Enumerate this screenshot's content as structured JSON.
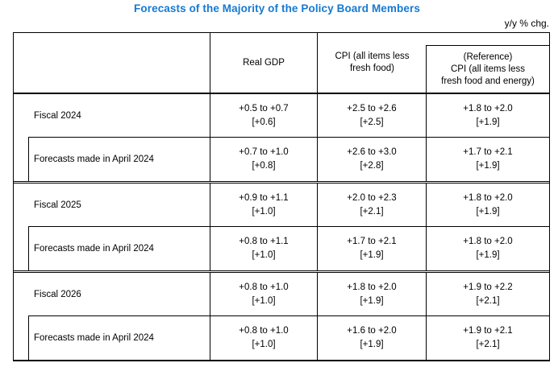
{
  "page": {
    "title": "Forecasts of the Majority of the Policy Board Members",
    "unit_note": "y/y % chg.",
    "title_color": "#1679d2",
    "border_color": "#000000"
  },
  "table": {
    "header": {
      "col_label": "",
      "col_real_gdp": "Real GDP",
      "col_cpi": "CPI (all items less\nfresh food)",
      "col_cpi_ref": "(Reference)\nCPI (all items less\nfresh food and energy)"
    },
    "groups": [
      {
        "fiscal": {
          "label": "Fiscal 2024",
          "cells": [
            {
              "range": "+0.5 to +0.7",
              "point": "[+0.6]"
            },
            {
              "range": "+2.5 to +2.6",
              "point": "[+2.5]"
            },
            {
              "range": "+1.8 to +2.0",
              "point": "[+1.9]"
            }
          ]
        },
        "april": {
          "label": "Forecasts made in April 2024",
          "cells": [
            {
              "range": "+0.7 to +1.0",
              "point": "[+0.8]"
            },
            {
              "range": "+2.6 to +3.0",
              "point": "[+2.8]"
            },
            {
              "range": "+1.7 to +2.1",
              "point": "[+1.9]"
            }
          ]
        }
      },
      {
        "fiscal": {
          "label": "Fiscal 2025",
          "cells": [
            {
              "range": "+0.9 to +1.1",
              "point": "[+1.0]"
            },
            {
              "range": "+2.0 to +2.3",
              "point": "[+2.1]"
            },
            {
              "range": "+1.8 to +2.0",
              "point": "[+1.9]"
            }
          ]
        },
        "april": {
          "label": "Forecasts made in April 2024",
          "cells": [
            {
              "range": "+0.8 to +1.1",
              "point": "[+1.0]"
            },
            {
              "range": "+1.7 to +2.1",
              "point": "[+1.9]"
            },
            {
              "range": "+1.8 to +2.0",
              "point": "[+1.9]"
            }
          ]
        }
      },
      {
        "fiscal": {
          "label": "Fiscal 2026",
          "cells": [
            {
              "range": "+0.8 to +1.0",
              "point": "[+1.0]"
            },
            {
              "range": "+1.8 to +2.0",
              "point": "[+1.9]"
            },
            {
              "range": "+1.9 to +2.2",
              "point": "[+2.1]"
            }
          ]
        },
        "april": {
          "label": "Forecasts made in April 2024",
          "cells": [
            {
              "range": "+0.8 to +1.0",
              "point": "[+1.0]"
            },
            {
              "range": "+1.6 to +2.0",
              "point": "[+1.9]"
            },
            {
              "range": "+1.9 to +2.1",
              "point": "[+2.1]"
            }
          ]
        }
      }
    ]
  }
}
